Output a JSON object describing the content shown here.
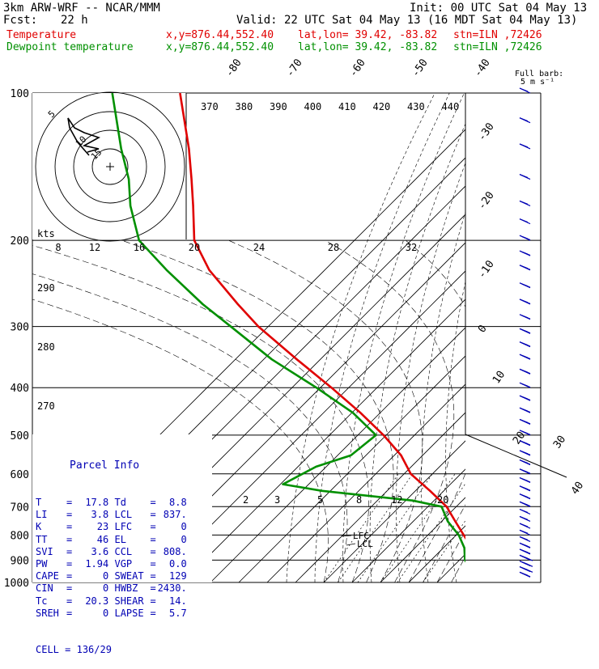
{
  "header": {
    "model": "3km ARW-WRF -- NCAR/MMM",
    "init": "Init: 00 UTC Sat 04 May 13",
    "fcst_label": "Fcst:",
    "fcst_value": "22 h",
    "valid": "Valid: 22 UTC Sat 04 May 13 (16 MDT Sat 04 May 13)",
    "temp_line": {
      "label": "Temperature",
      "xy": "x,y=876.44,552.40",
      "latlon": "lat,lon= 39.42, -83.82",
      "stn": "stn=ILN ,72426"
    },
    "dew_line": {
      "label": "Dewpoint temperature",
      "xy": "x,y=876.44,552.40",
      "latlon": "lat,lon= 39.42, -83.82",
      "stn": "stn=ILN ,72426"
    }
  },
  "colors": {
    "temperature": "#e00000",
    "dewpoint": "#008c00",
    "parcel": "#0000b4",
    "barbs": "#0000b4",
    "grid": "#000000"
  },
  "full_barb_label": "Full barb:",
  "full_barb_unit": "5 m s⁻¹",
  "chart_data": {
    "type": "line",
    "diagram": "skew-T log-p",
    "pressure_levels": [
      100,
      200,
      300,
      400,
      500,
      600,
      700,
      800,
      900,
      1000
    ],
    "pressure_tick_labels": [
      "100",
      "200",
      "300",
      "400",
      "500",
      "600",
      "700",
      "800",
      "900",
      "1000"
    ],
    "isotherm_labels": [
      "-80",
      "-70",
      "-60",
      "-50",
      "-40",
      "-30",
      "-20",
      "-10",
      "0",
      "10",
      "20",
      "30",
      "40"
    ],
    "theta_labels": [
      "370",
      "380",
      "390",
      "400",
      "410",
      "420",
      "430",
      "440"
    ],
    "theta_side_labels": [
      "290",
      "280",
      "270"
    ],
    "mixing_ratio_labels": [
      "2",
      "3",
      "5",
      "8",
      "12",
      "20"
    ],
    "lcl_label": "LCL",
    "lfc_label": "LFC",
    "series": [
      {
        "name": "Temperature",
        "color": "#e00000",
        "points": [
          [
            -57,
            100
          ],
          [
            -59,
            130
          ],
          [
            -61,
            150
          ],
          [
            -63,
            170
          ],
          [
            -66,
            200
          ],
          [
            -63,
            230
          ],
          [
            -55,
            270
          ],
          [
            -49,
            300
          ],
          [
            -37,
            350
          ],
          [
            -26,
            400
          ],
          [
            -17,
            450
          ],
          [
            -10,
            500
          ],
          [
            -5,
            550
          ],
          [
            -3,
            600
          ],
          [
            3,
            650
          ],
          [
            8,
            700
          ],
          [
            10,
            750
          ],
          [
            12,
            800
          ],
          [
            14,
            850
          ],
          [
            17,
            900
          ],
          [
            20.3,
            1000
          ]
        ]
      },
      {
        "name": "Dewpoint temperature",
        "color": "#009000",
        "points": [
          [
            -84,
            100
          ],
          [
            -86,
            130
          ],
          [
            -86,
            150
          ],
          [
            -88,
            170
          ],
          [
            -88,
            200
          ],
          [
            -80,
            230
          ],
          [
            -69,
            270
          ],
          [
            -60,
            300
          ],
          [
            -47,
            350
          ],
          [
            -32,
            400
          ],
          [
            -20,
            450
          ],
          [
            -13,
            500
          ],
          [
            -25,
            550
          ],
          [
            -40,
            580
          ],
          [
            -55,
            630
          ],
          [
            -40,
            650
          ],
          [
            -5,
            680
          ],
          [
            6,
            700
          ],
          [
            7,
            750
          ],
          [
            10,
            800
          ],
          [
            11,
            850
          ],
          [
            10,
            900
          ],
          [
            12,
            950
          ]
        ]
      }
    ],
    "hodograph": {
      "ring_labels": [
        "5",
        "10",
        "15"
      ],
      "kts_label": "kts",
      "trace": [
        [
          0,
          0
        ],
        [
          -8,
          6
        ],
        [
          -14,
          4
        ],
        [
          -20,
          2
        ],
        [
          -12,
          0
        ],
        [
          -22,
          -2
        ],
        [
          -18,
          -4
        ]
      ]
    },
    "kts_axis_labels": [
      "8",
      "12",
      "16",
      "20",
      "24",
      "28",
      "32"
    ],
    "wind_barbs": [
      {
        "p": 100,
        "s": 5
      },
      {
        "p": 115,
        "s": 5
      },
      {
        "p": 130,
        "s": 5
      },
      {
        "p": 150,
        "s": 5
      },
      {
        "p": 170,
        "s": 5
      },
      {
        "p": 185,
        "s": 5
      },
      {
        "p": 200,
        "s": 10
      },
      {
        "p": 215,
        "s": 10
      },
      {
        "p": 230,
        "s": 10
      },
      {
        "p": 250,
        "s": 10
      },
      {
        "p": 270,
        "s": 10
      },
      {
        "p": 290,
        "s": 10
      },
      {
        "p": 310,
        "s": 10
      },
      {
        "p": 330,
        "s": 10
      },
      {
        "p": 350,
        "s": 10
      },
      {
        "p": 375,
        "s": 10
      },
      {
        "p": 400,
        "s": 10
      },
      {
        "p": 425,
        "s": 10
      },
      {
        "p": 450,
        "s": 10
      },
      {
        "p": 475,
        "s": 10
      },
      {
        "p": 500,
        "s": 10
      },
      {
        "p": 525,
        "s": 10
      },
      {
        "p": 550,
        "s": 10
      },
      {
        "p": 575,
        "s": 10
      },
      {
        "p": 600,
        "s": 10
      },
      {
        "p": 625,
        "s": 10
      },
      {
        "p": 650,
        "s": 10
      },
      {
        "p": 675,
        "s": 10
      },
      {
        "p": 700,
        "s": 10
      },
      {
        "p": 725,
        "s": 5
      },
      {
        "p": 750,
        "s": 5
      },
      {
        "p": 775,
        "s": 5
      },
      {
        "p": 800,
        "s": 5
      },
      {
        "p": 825,
        "s": 5
      },
      {
        "p": 850,
        "s": 10
      },
      {
        "p": 875,
        "s": 10
      },
      {
        "p": 900,
        "s": 15
      },
      {
        "p": 925,
        "s": 15
      },
      {
        "p": 950,
        "s": 15
      },
      {
        "p": 975,
        "s": 10
      }
    ]
  },
  "parcel_info": {
    "title": "Parcel Info",
    "rows": [
      {
        "l1": "T",
        "v1": "17.8",
        "l2": "Td",
        "v2": "8.8"
      },
      {
        "l1": "LI",
        "v1": "3.8",
        "l2": "LCL",
        "v2": "837."
      },
      {
        "l1": "K",
        "v1": "23",
        "l2": "LFC",
        "v2": "0"
      },
      {
        "l1": "TT",
        "v1": "46",
        "l2": "EL",
        "v2": "0"
      },
      {
        "l1": "SVI",
        "v1": "3.6",
        "l2": "CCL",
        "v2": "808."
      },
      {
        "l1": "PW",
        "v1": "1.94",
        "l2": "VGP",
        "v2": "0.0"
      },
      {
        "l1": "CAPE",
        "v1": "0",
        "l2": "SWEAT",
        "v2": "129"
      },
      {
        "l1": "CIN",
        "v1": "0",
        "l2": "HWBZ",
        "v2": "2430."
      },
      {
        "l1": "Tc",
        "v1": "20.3",
        "l2": "SHEAR",
        "v2": "14."
      },
      {
        "l1": "SREH",
        "v1": "0",
        "l2": "LAPSE",
        "v2": "5.7"
      }
    ],
    "cell_label": "CELL",
    "cell_value": "136/29"
  }
}
